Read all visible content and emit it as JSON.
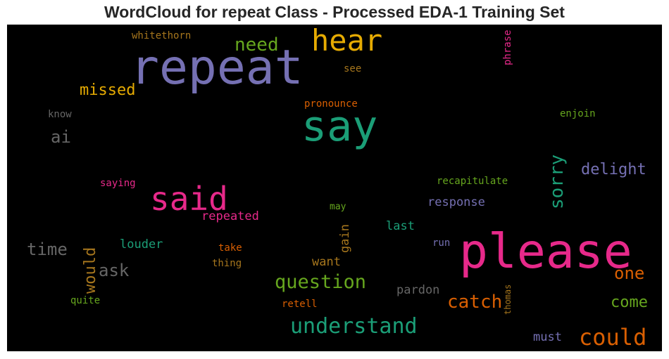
{
  "title": "WordCloud for repeat Class - Processed EDA-1 Training Set",
  "colors": {
    "purple": "#7570b3",
    "green": "#1b9e77",
    "pink": "#e7298a",
    "orange": "#d95f02",
    "gold": "#e6ab02",
    "lime": "#66a61e",
    "brown": "#a6761d",
    "gray": "#666666"
  },
  "words": [
    {
      "text": "repeat",
      "color": "purple"
    },
    {
      "text": "please",
      "color": "pink"
    },
    {
      "text": "say",
      "color": "green"
    },
    {
      "text": "said",
      "color": "pink"
    },
    {
      "text": "hear",
      "color": "gold"
    },
    {
      "text": "understand",
      "color": "green"
    },
    {
      "text": "could",
      "color": "orange"
    },
    {
      "text": "question",
      "color": "lime"
    },
    {
      "text": "sorry",
      "color": "green"
    },
    {
      "text": "catch",
      "color": "orange"
    },
    {
      "text": "need",
      "color": "lime"
    },
    {
      "text": "missed",
      "color": "gold"
    },
    {
      "text": "delight",
      "color": "purple"
    },
    {
      "text": "one",
      "color": "orange"
    },
    {
      "text": "time",
      "color": "gray"
    },
    {
      "text": "ask",
      "color": "gray"
    },
    {
      "text": "would",
      "color": "brown"
    },
    {
      "text": "ai",
      "color": "gray"
    },
    {
      "text": "come",
      "color": "lime"
    },
    {
      "text": "response",
      "color": "purple"
    },
    {
      "text": "repeated",
      "color": "pink"
    },
    {
      "text": "louder",
      "color": "green"
    },
    {
      "text": "last",
      "color": "green"
    },
    {
      "text": "gain",
      "color": "brown"
    },
    {
      "text": "want",
      "color": "brown"
    },
    {
      "text": "pardon",
      "color": "gray"
    },
    {
      "text": "must",
      "color": "purple"
    },
    {
      "text": "recapitulate",
      "color": "lime"
    },
    {
      "text": "pronounce",
      "color": "orange"
    },
    {
      "text": "enjoin",
      "color": "lime"
    },
    {
      "text": "whitethorn",
      "color": "brown"
    },
    {
      "text": "know",
      "color": "gray"
    },
    {
      "text": "see",
      "color": "brown"
    },
    {
      "text": "phrase",
      "color": "pink"
    },
    {
      "text": "saying",
      "color": "pink"
    },
    {
      "text": "may",
      "color": "lime"
    },
    {
      "text": "take",
      "color": "orange"
    },
    {
      "text": "thing",
      "color": "brown"
    },
    {
      "text": "run",
      "color": "purple"
    },
    {
      "text": "quite",
      "color": "lime"
    },
    {
      "text": "retell",
      "color": "orange"
    },
    {
      "text": "thomas",
      "color": "brown"
    }
  ]
}
